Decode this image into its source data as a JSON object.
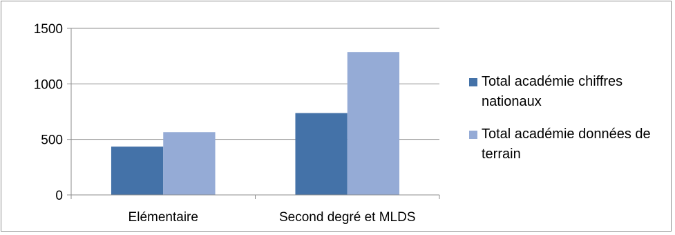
{
  "chart_data": {
    "type": "bar",
    "title": "",
    "xlabel": "",
    "ylabel": "",
    "categories": [
      "Elémentaire",
      "Second degré et MLDS"
    ],
    "series": [
      {
        "name": "Total académie chiffres nationaux",
        "values": [
          435,
          737
        ],
        "color": "#4472a8"
      },
      {
        "name": "Total académie données de terrain",
        "values": [
          565,
          1287
        ],
        "color": "#95abd6"
      }
    ],
    "ylim": [
      0,
      1500
    ],
    "yticks": [
      0,
      500,
      1000,
      1500
    ],
    "grid": true,
    "legend_position": "right"
  }
}
